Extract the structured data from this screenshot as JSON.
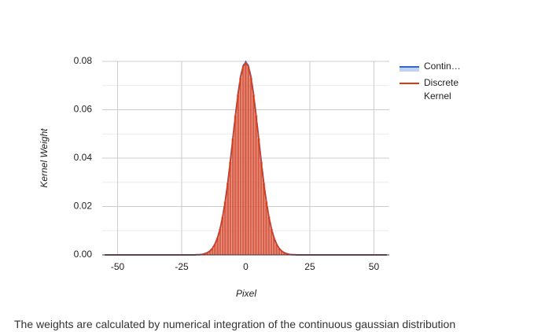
{
  "chart_data": {
    "type": "line_bar",
    "x_label": "Pixel",
    "y_label": "Kernel Weight",
    "x": [
      -55,
      -20,
      -19,
      -18,
      -17,
      -16,
      -15,
      -14,
      -13,
      -12,
      -11,
      -10,
      -9,
      -8,
      -7,
      -6,
      -5,
      -4,
      -3,
      -2,
      -1,
      0,
      1,
      2,
      3,
      4,
      5,
      6,
      7,
      8,
      9,
      10,
      11,
      12,
      13,
      14,
      15,
      16,
      17,
      18,
      19,
      20,
      55
    ],
    "series": [
      {
        "name": "Contin…",
        "color": "#3366cc",
        "kind": "area",
        "values": [
          0,
          0,
          0.0001,
          0.0001,
          0.0002,
          0.0005,
          0.0009,
          0.0016,
          0.0027,
          0.0045,
          0.0071,
          0.0108,
          0.0158,
          0.0222,
          0.0299,
          0.0388,
          0.0484,
          0.0579,
          0.0666,
          0.0737,
          0.0782,
          0.0798,
          0.0782,
          0.0737,
          0.0666,
          0.0579,
          0.0484,
          0.0388,
          0.0299,
          0.0222,
          0.0158,
          0.0108,
          0.0071,
          0.0045,
          0.0027,
          0.0016,
          0.0009,
          0.0005,
          0.0002,
          0.0001,
          0.0001,
          0,
          0
        ]
      },
      {
        "name": "Discrete Kernel",
        "color": "#dc3912",
        "kind": "bar",
        "values": [
          0,
          0,
          0.0001,
          0.0001,
          0.0002,
          0.0005,
          0.0009,
          0.0016,
          0.0027,
          0.0045,
          0.0071,
          0.0108,
          0.0158,
          0.0221,
          0.0298,
          0.0386,
          0.0482,
          0.0577,
          0.0663,
          0.0733,
          0.0778,
          0.0794,
          0.0778,
          0.0733,
          0.0663,
          0.0577,
          0.0482,
          0.0386,
          0.0298,
          0.0221,
          0.0158,
          0.0108,
          0.0071,
          0.0045,
          0.0027,
          0.0016,
          0.0009,
          0.0005,
          0.0002,
          0.0001,
          0.0001,
          0,
          0
        ]
      }
    ],
    "xlim": [
      -56,
      56
    ],
    "xticks": [
      -50,
      -25,
      0,
      25,
      50
    ],
    "ylim": [
      0,
      0.08
    ],
    "yticks": [
      {
        "value": 0,
        "label": "0.00"
      },
      {
        "value": 0.02,
        "label": "0.02"
      },
      {
        "value": 0.04,
        "label": "0.04"
      },
      {
        "value": 0.06,
        "label": "0.06"
      },
      {
        "value": 0.08,
        "label": "0.08"
      }
    ],
    "yminor": [
      0.01,
      0.03,
      0.05,
      0.07
    ],
    "grid": true,
    "legend": "right"
  },
  "caption": "The weights are calculated by numerical integration of the continuous gaussian distribution"
}
